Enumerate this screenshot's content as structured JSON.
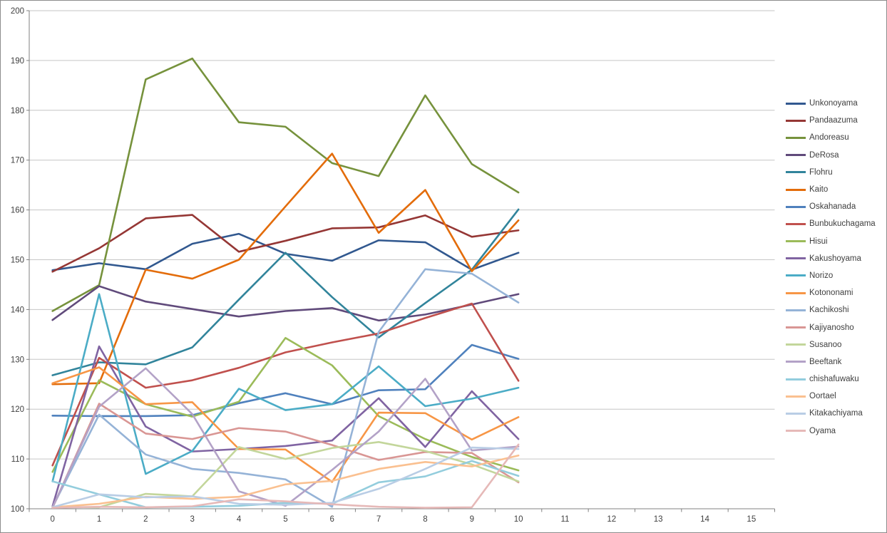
{
  "chart_data": {
    "type": "line",
    "title": "",
    "xlabel": "",
    "ylabel": "",
    "ylim": [
      100,
      200
    ],
    "y_tick_step": 10,
    "grid": true,
    "legend_position": "right",
    "axis_color": "#808080",
    "grid_color": "#c6c6c6",
    "label_color": "#3f3f3f",
    "x_tick_labels": [
      "0",
      "1",
      "2",
      "3",
      "4",
      "5",
      "6",
      "7",
      "8",
      "9",
      "10",
      "11",
      "12",
      "13",
      "14",
      "15"
    ],
    "y_tick_labels": [
      "100",
      "110",
      "120",
      "130",
      "140",
      "150",
      "160",
      "170",
      "180",
      "190",
      "200"
    ],
    "x_data_points": [
      0,
      1,
      2,
      3,
      4,
      5,
      6,
      7,
      8,
      9,
      10
    ],
    "series": [
      {
        "name": "Unkonoyama",
        "color": "#31588f",
        "values": [
          147.9,
          149.3,
          148.1,
          153.2,
          155.2,
          151.2,
          149.8,
          153.9,
          153.5,
          148.0,
          151.4
        ]
      },
      {
        "name": "Pandaazuma",
        "color": "#953735",
        "values": [
          147.6,
          152.3,
          158.3,
          159.0,
          151.6,
          153.8,
          156.3,
          156.5,
          158.9,
          154.6,
          155.9
        ]
      },
      {
        "name": "Andoreasu",
        "color": "#76923c",
        "values": [
          139.7,
          144.9,
          186.2,
          190.4,
          177.6,
          176.7,
          169.4,
          166.8,
          183.0,
          169.2,
          163.5
        ]
      },
      {
        "name": "DeRosa",
        "color": "#604a7b",
        "values": [
          137.9,
          144.7,
          141.6,
          140.1,
          138.6,
          139.7,
          140.3,
          137.8,
          139.0,
          141.0,
          143.1
        ]
      },
      {
        "name": "Flohru",
        "color": "#31849b",
        "values": [
          126.8,
          129.4,
          129.0,
          132.4,
          142.0,
          151.4,
          142.5,
          134.4,
          141.3,
          148.0,
          160.1
        ]
      },
      {
        "name": "Kaito",
        "color": "#e36c0a",
        "values": [
          125.0,
          125.2,
          148.0,
          146.2,
          150.0,
          160.7,
          171.3,
          155.4,
          164.0,
          147.7,
          157.9
        ]
      },
      {
        "name": "Oskahanada",
        "color": "#4f81bd",
        "values": [
          118.7,
          118.6,
          118.6,
          118.8,
          121.2,
          123.2,
          121.0,
          123.8,
          124.0,
          132.9,
          130.1
        ]
      },
      {
        "name": "Bunbukuchagama",
        "color": "#c0504d",
        "values": [
          108.7,
          130.3,
          124.3,
          125.8,
          128.3,
          131.4,
          133.4,
          135.2,
          138.3,
          141.2,
          125.7
        ]
      },
      {
        "name": "Hisui",
        "color": "#9bbb59",
        "values": [
          107.4,
          125.8,
          121.0,
          118.5,
          121.5,
          134.3,
          128.8,
          118.6,
          114.0,
          110.4,
          107.7
        ]
      },
      {
        "name": "Kakushoyama",
        "color": "#8064a2",
        "values": [
          100.5,
          132.6,
          116.5,
          111.5,
          112.0,
          112.6,
          113.7,
          122.2,
          112.4,
          123.6,
          114.0
        ]
      },
      {
        "name": "Norizo",
        "color": "#4bacc6",
        "values": [
          105.5,
          143.1,
          107.0,
          111.6,
          124.1,
          119.8,
          121.0,
          128.6,
          120.6,
          122.1,
          124.3
        ]
      },
      {
        "name": "Kotononami",
        "color": "#f79646",
        "values": [
          125.2,
          128.4,
          121.0,
          121.4,
          112.0,
          111.9,
          105.4,
          119.3,
          119.2,
          113.9,
          118.4
        ]
      },
      {
        "name": "Kachikoshi",
        "color": "#95b3d7",
        "values": [
          100.3,
          118.9,
          110.9,
          108.0,
          107.2,
          105.9,
          100.4,
          135.5,
          148.1,
          147.2,
          141.4
        ]
      },
      {
        "name": "Kajiyanosho",
        "color": "#d99694",
        "values": [
          100.2,
          121.1,
          115.1,
          114.0,
          116.2,
          115.5,
          112.8,
          109.8,
          111.4,
          111.2,
          105.3
        ]
      },
      {
        "name": "Susanoo",
        "color": "#c3d69b",
        "values": [
          100.4,
          100.3,
          103.0,
          102.5,
          112.4,
          110.0,
          112.2,
          113.4,
          111.6,
          108.9,
          105.5
        ]
      },
      {
        "name": "Beeftank",
        "color": "#b3a2c7",
        "values": [
          100.3,
          120.5,
          128.2,
          119.0,
          103.5,
          100.6,
          107.8,
          115.5,
          126.1,
          111.7,
          112.5
        ]
      },
      {
        "name": "chishafuwaku",
        "color": "#93cddd",
        "values": [
          105.5,
          102.9,
          100.3,
          100.4,
          100.6,
          101.2,
          101.0,
          105.3,
          106.5,
          109.6,
          106.6
        ]
      },
      {
        "name": "Oortael",
        "color": "#fac090",
        "values": [
          100.3,
          101.0,
          102.4,
          102.0,
          102.4,
          104.9,
          105.6,
          108.0,
          109.4,
          108.5,
          110.7
        ]
      },
      {
        "name": "Kitakachiyama",
        "color": "#b9cde5",
        "values": [
          100.3,
          102.9,
          102.3,
          102.5,
          101.0,
          100.8,
          101.2,
          104.0,
          108.0,
          112.3,
          112.0
        ]
      },
      {
        "name": "Oyama",
        "color": "#e6b9b8",
        "values": [
          100.2,
          100.4,
          100.3,
          100.5,
          101.9,
          101.5,
          100.9,
          100.4,
          100.2,
          100.3,
          112.9
        ]
      }
    ]
  }
}
